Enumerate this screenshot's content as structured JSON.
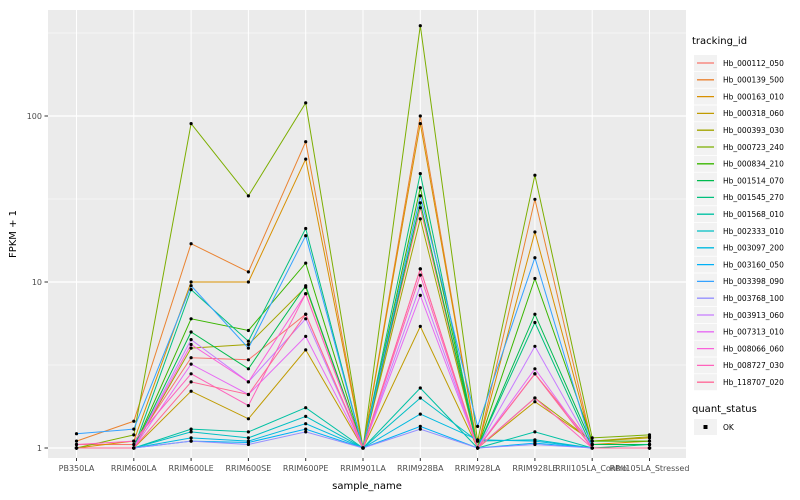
{
  "style": {
    "page_bg": "#ffffff",
    "panel_bg": "#ebebeb",
    "grid_color": "#ffffff",
    "axis_text_color": "#4d4d4d",
    "tick_mark_color": "#333333",
    "point_color": "#000000",
    "legend_key_bg": "#f2f2f2"
  },
  "chart_data": {
    "type": "line",
    "title": "",
    "xlabel": "sample_name",
    "ylabel": "FPKM + 1",
    "y_scale": "log10",
    "ylim": [
      1,
      435
    ],
    "y_ticks": [
      {
        "value": 1,
        "label": "1"
      },
      {
        "value": 10,
        "label": "10"
      },
      {
        "value": 100,
        "label": "100"
      }
    ],
    "y_minor_ticks": [
      3.1623,
      31.623,
      316.23
    ],
    "grid": "white major+minor on grey panel",
    "legend": {
      "title": "tracking_id",
      "position": "right"
    },
    "quant_legend": {
      "title": "quant_status",
      "items": [
        {
          "label": "OK",
          "marker": "black-point"
        }
      ]
    },
    "categories": [
      "PB350LA",
      "RRIM600LA",
      "RRIM600LE",
      "RRIM600SE",
      "RRIM600PE",
      "RRIM901LA",
      "RRIM928BA",
      "RRIM928LA",
      "RRIM928LE",
      "RRII105LA_Control",
      "RRII105LA_Stressed"
    ],
    "series": [
      {
        "name": "Hb_000112_050",
        "color": "#F8766D",
        "values": [
          1.05,
          1.05,
          3.5,
          3.4,
          6.4,
          1.0,
          28,
          1.0,
          2.8,
          1.05,
          1.05
        ]
      },
      {
        "name": "Hb_000139_500",
        "color": "#EA8331",
        "values": [
          1.1,
          1.45,
          17,
          11.5,
          70,
          1.0,
          100,
          1.0,
          31.5,
          1.05,
          1.05
        ]
      },
      {
        "name": "Hb_000163_010",
        "color": "#D89000",
        "values": [
          1.0,
          1.1,
          10,
          10,
          55,
          1.0,
          90,
          1.0,
          20,
          1.05,
          1.1
        ]
      },
      {
        "name": "Hb_000318_060",
        "color": "#C09B00",
        "values": [
          1.0,
          1.0,
          2.2,
          1.5,
          3.9,
          1.0,
          5.4,
          1.0,
          1.9,
          1.1,
          1.15
        ]
      },
      {
        "name": "Hb_000393_030",
        "color": "#A3A500",
        "values": [
          1.0,
          1.0,
          4.0,
          4.2,
          9.3,
          1.0,
          24,
          1.0,
          2.0,
          1.1,
          1.17
        ]
      },
      {
        "name": "Hb_000723_240",
        "color": "#7CAE00",
        "values": [
          1.0,
          1.2,
          90,
          33,
          120,
          1.0,
          350,
          1.1,
          44,
          1.15,
          1.2
        ]
      },
      {
        "name": "Hb_000834_210",
        "color": "#39B600",
        "values": [
          1.0,
          1.0,
          6.0,
          5.1,
          13,
          1.0,
          37,
          1.0,
          10.5,
          1.1,
          1.1
        ]
      },
      {
        "name": "Hb_001514_070",
        "color": "#00BB4E",
        "values": [
          1.0,
          1.0,
          5.0,
          3.0,
          9.5,
          1.0,
          30,
          1.0,
          6.4,
          1.05,
          1.05
        ]
      },
      {
        "name": "Hb_001545_270",
        "color": "#00BF7D",
        "values": [
          1.0,
          1.0,
          9.0,
          4.4,
          21,
          1.0,
          45,
          1.0,
          5.7,
          1.0,
          1.05
        ]
      },
      {
        "name": "Hb_001568_010",
        "color": "#00C1A3",
        "values": [
          1.0,
          1.0,
          1.3,
          1.25,
          1.75,
          1.0,
          2.3,
          1.0,
          1.25,
          1.0,
          1.0
        ]
      },
      {
        "name": "Hb_002333_010",
        "color": "#00BFC4",
        "values": [
          1.0,
          1.0,
          1.25,
          1.15,
          1.55,
          1.0,
          2.0,
          1.1,
          1.12,
          1.0,
          1.0
        ]
      },
      {
        "name": "Hb_003097_200",
        "color": "#00BAE0",
        "values": [
          1.0,
          1.0,
          1.15,
          1.1,
          1.4,
          1.0,
          1.6,
          1.12,
          1.1,
          1.0,
          1.0
        ]
      },
      {
        "name": "Hb_003160_050",
        "color": "#00B0F6",
        "values": [
          1.0,
          1.0,
          1.1,
          1.08,
          1.3,
          1.0,
          1.35,
          1.0,
          1.07,
          1.0,
          1.0
        ]
      },
      {
        "name": "Hb_003398_090",
        "color": "#35A2FF",
        "values": [
          1.22,
          1.3,
          9.5,
          4.0,
          19,
          1.0,
          33,
          1.35,
          14,
          1.0,
          1.0
        ]
      },
      {
        "name": "Hb_003768_100",
        "color": "#9590FF",
        "values": [
          1.0,
          1.0,
          1.1,
          1.05,
          1.25,
          1.0,
          1.3,
          1.0,
          1.05,
          1.0,
          1.0
        ]
      },
      {
        "name": "Hb_003913_060",
        "color": "#C77CFF",
        "values": [
          1.0,
          1.0,
          4.5,
          2.5,
          6.0,
          1.0,
          9.5,
          1.0,
          4.1,
          1.0,
          1.0
        ]
      },
      {
        "name": "Hb_007313_010",
        "color": "#E76BF3",
        "values": [
          1.0,
          1.0,
          3.2,
          2.1,
          4.7,
          1.0,
          8.3,
          1.0,
          3.0,
          1.0,
          1.0
        ]
      },
      {
        "name": "Hb_008066_060",
        "color": "#FA62DB",
        "values": [
          1.0,
          1.0,
          4.2,
          2.5,
          8.5,
          1.0,
          12,
          1.0,
          2.8,
          1.0,
          1.0
        ]
      },
      {
        "name": "Hb_008727_030",
        "color": "#FF62BC",
        "values": [
          1.05,
          1.1,
          2.8,
          1.8,
          8.5,
          1.0,
          11,
          1.0,
          2.0,
          1.0,
          1.0
        ]
      },
      {
        "name": "Hb_118707_020",
        "color": "#FF6A98",
        "values": [
          1.0,
          1.0,
          2.5,
          2.1,
          6.4,
          1.0,
          12,
          1.0,
          2.8,
          1.0,
          1.0
        ]
      }
    ]
  }
}
